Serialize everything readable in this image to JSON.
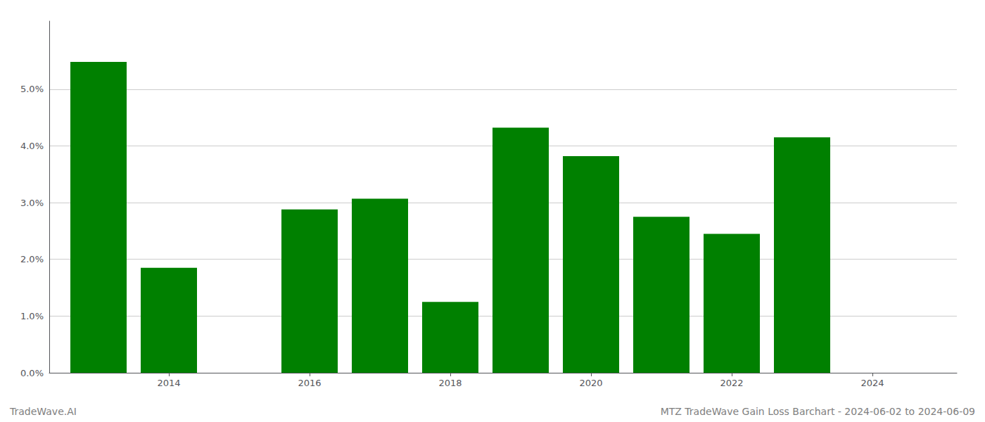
{
  "chart_data": {
    "type": "bar",
    "x": [
      2013,
      2014,
      2016,
      2017,
      2018,
      2019,
      2020,
      2021,
      2022,
      2023
    ],
    "values": [
      0.0548,
      0.0185,
      0.0288,
      0.0307,
      0.0125,
      0.0432,
      0.0382,
      0.0275,
      0.0245,
      0.0415
    ],
    "color": "#008000",
    "xlim": [
      2012.3,
      2025.2
    ],
    "ylim": [
      0.0,
      0.062
    ],
    "xticks": [
      2014,
      2016,
      2018,
      2020,
      2022,
      2024
    ],
    "yticks": [
      {
        "value": 0.0,
        "label": "0.0%"
      },
      {
        "value": 0.01,
        "label": "1.0%"
      },
      {
        "value": 0.02,
        "label": "2.0%"
      },
      {
        "value": 0.03,
        "label": "3.0%"
      },
      {
        "value": 0.04,
        "label": "4.0%"
      },
      {
        "value": 0.05,
        "label": "5.0%"
      }
    ],
    "grid": true,
    "annotations": [
      "TradeWave.AI",
      "MTZ TradeWave Gain Loss Barchart - 2024-06-02 to 2024-06-09"
    ]
  }
}
